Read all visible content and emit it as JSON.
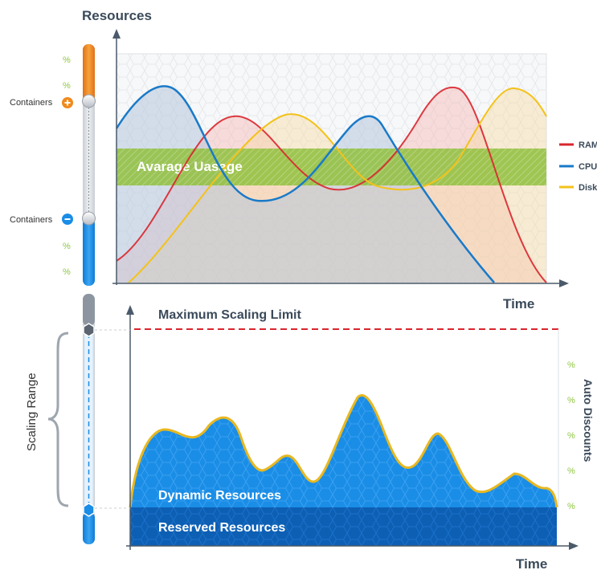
{
  "top": {
    "y_axis_label": "Resources",
    "x_axis_label": "Time",
    "band_label": "Avarage Uasage",
    "legend": [
      {
        "label": "RAM",
        "color": "#d9262e"
      },
      {
        "label": "CPU",
        "color": "#1a7ac8"
      },
      {
        "label": "Disk",
        "color": "#f3c21a"
      }
    ],
    "slider": {
      "upper_handle_label": "Containers",
      "lower_handle_label": "Containers",
      "plus_icon": "plus-icon",
      "minus_icon": "minus-icon",
      "percent_marks": [
        "%",
        "%",
        "%",
        "%"
      ]
    }
  },
  "bottom": {
    "max_limit_label": "Maximum Scaling Limit",
    "scaling_range_label": "Scaling Range",
    "right_axis_label": "Auto Discounts",
    "right_percent_marks": [
      "%",
      "%",
      "%",
      "%",
      "%"
    ],
    "dynamic_label": "Dynamic Resources",
    "reserved_label": "Reserved Resources",
    "x_axis_label": "Time"
  },
  "colors": {
    "orange": "#f08a1c",
    "blue": "#1a8de6",
    "dark_blue": "#0d5fb4",
    "green_band": "#8fbf3c",
    "yellow": "#f3c21a",
    "red_dash": "#d9262e"
  }
}
